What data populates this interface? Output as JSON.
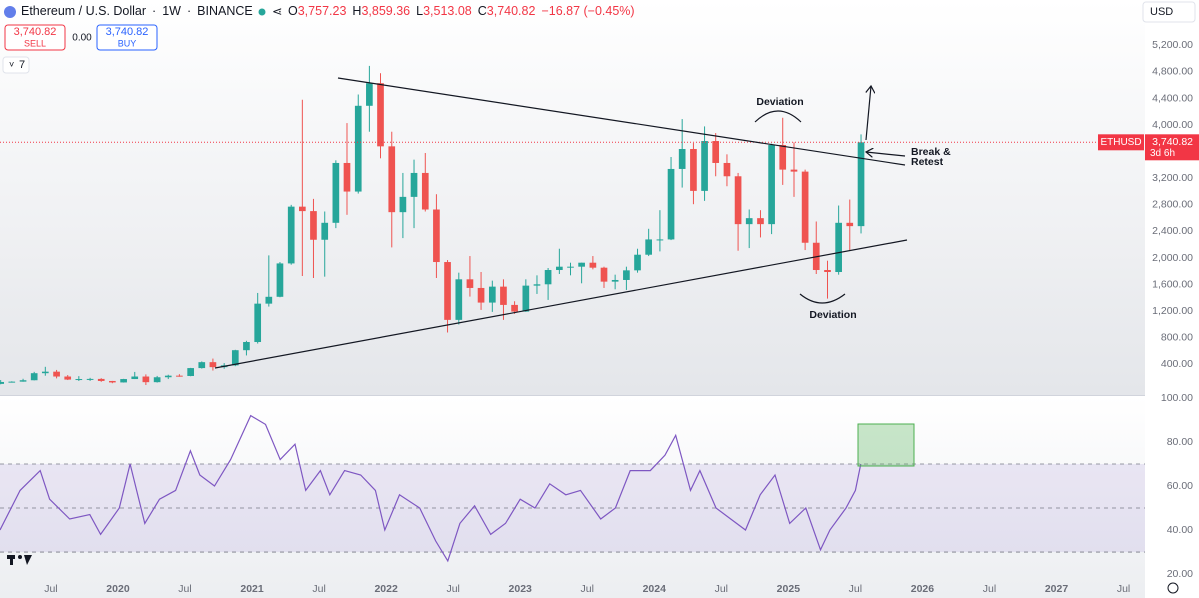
{
  "header": {
    "symbol": "Ethereum / U.S. Dollar",
    "interval": "1W",
    "exchange": "BINANCE",
    "ohlc": [
      {
        "key": "O",
        "value": "3,757.23"
      },
      {
        "key": "H",
        "value": "3,859.36"
      },
      {
        "key": "L",
        "value": "3,513.08"
      },
      {
        "key": "C",
        "value": "3,740.82"
      }
    ],
    "change": "−16.87 (−0.45%)",
    "sell_price": "3,740.82",
    "sell_label": "SELL",
    "spread": "0.00",
    "buy_price": "3,740.82",
    "buy_label": "BUY",
    "indicator_count": "7",
    "currency": "USD"
  },
  "annotations": {
    "deviation_top": "Deviation",
    "deviation_bottom": "Deviation",
    "break_retest": [
      "Break &",
      "Retest"
    ]
  },
  "chart_data": [
    {
      "type": "candlestick",
      "symbol_tag": "ETHUSD",
      "countdown": "3d 6h",
      "last_price": {
        "value": 3740.82,
        "label": "3,740.82"
      },
      "up_color": "#26a69a",
      "down_color": "#ef5350",
      "xlim": [
        2019.12,
        2027.66
      ],
      "ylim": [
        -60,
        5430
      ],
      "yticks": [
        {
          "value": 400,
          "label": "400.00"
        },
        {
          "value": 800,
          "label": "800.00"
        },
        {
          "value": 1200,
          "label": "1,200.00"
        },
        {
          "value": 1600,
          "label": "1,600.00"
        },
        {
          "value": 2000,
          "label": "2,000.00"
        },
        {
          "value": 2400,
          "label": "2,400.00"
        },
        {
          "value": 2800,
          "label": "2,800.00"
        },
        {
          "value": 3200,
          "label": "3,200.00"
        },
        {
          "value": 3600,
          "label": "3,600.00"
        },
        {
          "value": 4000,
          "label": "4,000.00"
        },
        {
          "value": 4400,
          "label": "4,400.00"
        },
        {
          "value": 4800,
          "label": "4,800.00"
        },
        {
          "value": 5200,
          "label": "5,200.00"
        }
      ],
      "x": [
        2019.125,
        2019.208,
        2019.292,
        2019.375,
        2019.458,
        2019.542,
        2019.625,
        2019.708,
        2019.792,
        2019.875,
        2019.958,
        2020.042,
        2020.125,
        2020.208,
        2020.292,
        2020.375,
        2020.458,
        2020.542,
        2020.625,
        2020.708,
        2020.792,
        2020.875,
        2020.958,
        2021.042,
        2021.125,
        2021.208,
        2021.292,
        2021.375,
        2021.458,
        2021.542,
        2021.625,
        2021.708,
        2021.792,
        2021.875,
        2021.958,
        2022.042,
        2022.125,
        2022.208,
        2022.292,
        2022.375,
        2022.458,
        2022.542,
        2022.625,
        2022.708,
        2022.792,
        2022.875,
        2022.958,
        2023.042,
        2023.125,
        2023.208,
        2023.292,
        2023.375,
        2023.458,
        2023.542,
        2023.625,
        2023.708,
        2023.792,
        2023.875,
        2023.958,
        2024.042,
        2024.125,
        2024.208,
        2024.292,
        2024.375,
        2024.458,
        2024.542,
        2024.625,
        2024.708,
        2024.792,
        2024.875,
        2024.958,
        2025.042,
        2025.125,
        2025.208,
        2025.292,
        2025.375,
        2025.458,
        2025.542
      ],
      "open": [
        107,
        136,
        141,
        162,
        268,
        291,
        218,
        172,
        180,
        182,
        151,
        129,
        180,
        218,
        133,
        207,
        231,
        226,
        345,
        434,
        359,
        386,
        614,
        737,
        1314,
        1417,
        1919,
        2773,
        2706,
        2275,
        2530,
        3430,
        3000,
        4290,
        4630,
        3680,
        2690,
        2920,
        3280,
        2730,
        1940,
        1070,
        1680,
        1550,
        1330,
        1570,
        1295,
        1195,
        1585,
        1605,
        1820,
        1870,
        1870,
        1930,
        1855,
        1645,
        1670,
        1815,
        2050,
        2280,
        2280,
        3340,
        3640,
        3010,
        3760,
        3430,
        3230,
        2510,
        2600,
        2510,
        3700,
        3330,
        3300,
        2230,
        1820,
        1790,
        2530,
        2480
      ],
      "high": [
        165,
        146,
        184,
        288,
        364,
        317,
        240,
        224,
        198,
        193,
        152,
        183,
        287,
        250,
        227,
        245,
        253,
        348,
        445,
        488,
        420,
        620,
        755,
        1475,
        2040,
        1940,
        2800,
        4380,
        2890,
        2700,
        3470,
        4030,
        4460,
        4890,
        4780,
        3900,
        3280,
        3480,
        3580,
        2960,
        1970,
        1780,
        2030,
        1790,
        1660,
        1680,
        1350,
        1680,
        1740,
        1850,
        2140,
        1930,
        1930,
        2030,
        1870,
        1750,
        1870,
        2140,
        2440,
        2720,
        3520,
        4090,
        3730,
        3980,
        3880,
        3560,
        3280,
        2730,
        2720,
        3720,
        4110,
        3740,
        3330,
        2550,
        1960,
        2790,
        2880,
        3860
      ],
      "low": [
        101,
        127,
        140,
        160,
        230,
        190,
        165,
        151,
        152,
        138,
        117,
        127,
        180,
        90,
        127,
        180,
        215,
        222,
        337,
        308,
        335,
        374,
        535,
        714,
        1270,
        1410,
        1900,
        1730,
        1700,
        1720,
        2450,
        2650,
        2970,
        3900,
        3500,
        2160,
        2300,
        2450,
        2700,
        1700,
        880,
        1000,
        1420,
        1220,
        1190,
        1070,
        1160,
        1190,
        1460,
        1370,
        1760,
        1740,
        1620,
        1830,
        1550,
        1530,
        1520,
        1780,
        2030,
        2100,
        2270,
        3060,
        2810,
        2860,
        3230,
        3080,
        2110,
        2150,
        2310,
        2360,
        3100,
        2920,
        2120,
        1760,
        1390,
        1750,
        2110,
        2370
      ],
      "close": [
        136,
        141,
        162,
        268,
        291,
        218,
        172,
        180,
        182,
        151,
        129,
        180,
        218,
        133,
        207,
        231,
        226,
        345,
        434,
        359,
        386,
        614,
        737,
        1314,
        1417,
        1919,
        2773,
        2706,
        2275,
        2530,
        3430,
        3000,
        4290,
        4630,
        3680,
        2690,
        2920,
        3280,
        2730,
        1940,
        1070,
        1680,
        1550,
        1330,
        1570,
        1295,
        1195,
        1585,
        1605,
        1820,
        1870,
        1870,
        1930,
        1855,
        1645,
        1670,
        1815,
        2050,
        2280,
        2280,
        3340,
        3640,
        3010,
        3760,
        3430,
        3230,
        2510,
        2600,
        2510,
        3700,
        3330,
        3300,
        2230,
        1820,
        1790,
        2530,
        2480,
        3740
      ]
    },
    {
      "type": "line",
      "color": "#7e57c2",
      "xlim": [
        2019.12,
        2027.66
      ],
      "ylim": [
        17.3,
        100.9
      ],
      "yticks": [
        {
          "value": 100,
          "label": "100.00"
        },
        {
          "value": 80,
          "label": "80.00"
        },
        {
          "value": 60,
          "label": "60.00"
        },
        {
          "value": 40,
          "label": "40.00"
        },
        {
          "value": 20,
          "label": "20.00"
        }
      ],
      "levels": [
        30,
        50,
        70
      ],
      "xticks": [
        {
          "value": 2019.5,
          "label": "Jul"
        },
        2020,
        {
          "value": 2020.5,
          "label": "Jul"
        },
        2021,
        {
          "value": 2021.5,
          "label": "Jul"
        },
        2022,
        {
          "value": 2022.5,
          "label": "Jul"
        },
        2023,
        {
          "value": 2023.5,
          "label": "Jul"
        },
        2024,
        {
          "value": 2024.5,
          "label": "Jul"
        },
        2025,
        {
          "value": 2025.5,
          "label": "Jul"
        },
        2026,
        {
          "value": 2026.5,
          "label": "Jul"
        },
        2027,
        {
          "value": 2027.5,
          "label": "Jul"
        }
      ],
      "x": [
        2019.12,
        2019.27,
        2019.42,
        2019.49,
        2019.64,
        2019.79,
        2019.87,
        2020.01,
        2020.09,
        2020.2,
        2020.31,
        2020.43,
        2020.54,
        2020.61,
        2020.72,
        2020.84,
        2020.99,
        2021.1,
        2021.21,
        2021.32,
        2021.4,
        2021.51,
        2021.58,
        2021.69,
        2021.81,
        2021.92,
        2021.99,
        2022.1,
        2022.25,
        2022.37,
        2022.46,
        2022.55,
        2022.66,
        2022.78,
        2022.89,
        2023.0,
        2023.11,
        2023.22,
        2023.34,
        2023.45,
        2023.6,
        2023.71,
        2023.82,
        2023.97,
        2024.08,
        2024.16,
        2024.27,
        2024.34,
        2024.46,
        2024.57,
        2024.68,
        2024.79,
        2024.9,
        2025.01,
        2025.13,
        2025.24,
        2025.31,
        2025.43,
        2025.5,
        2025.54
      ],
      "values": [
        40,
        58,
        67,
        54,
        45,
        47,
        38,
        50,
        70,
        43,
        54,
        58,
        76,
        65,
        60,
        72,
        92,
        88,
        72,
        79,
        58,
        67,
        56,
        67,
        65,
        58,
        40,
        56,
        50,
        35,
        26,
        43,
        51,
        38,
        43,
        54,
        50,
        61,
        56,
        58,
        45,
        50,
        67,
        67,
        74,
        83,
        58,
        67,
        50,
        45,
        40,
        56,
        65,
        43,
        50,
        31,
        40,
        50,
        58,
        70
      ]
    }
  ]
}
